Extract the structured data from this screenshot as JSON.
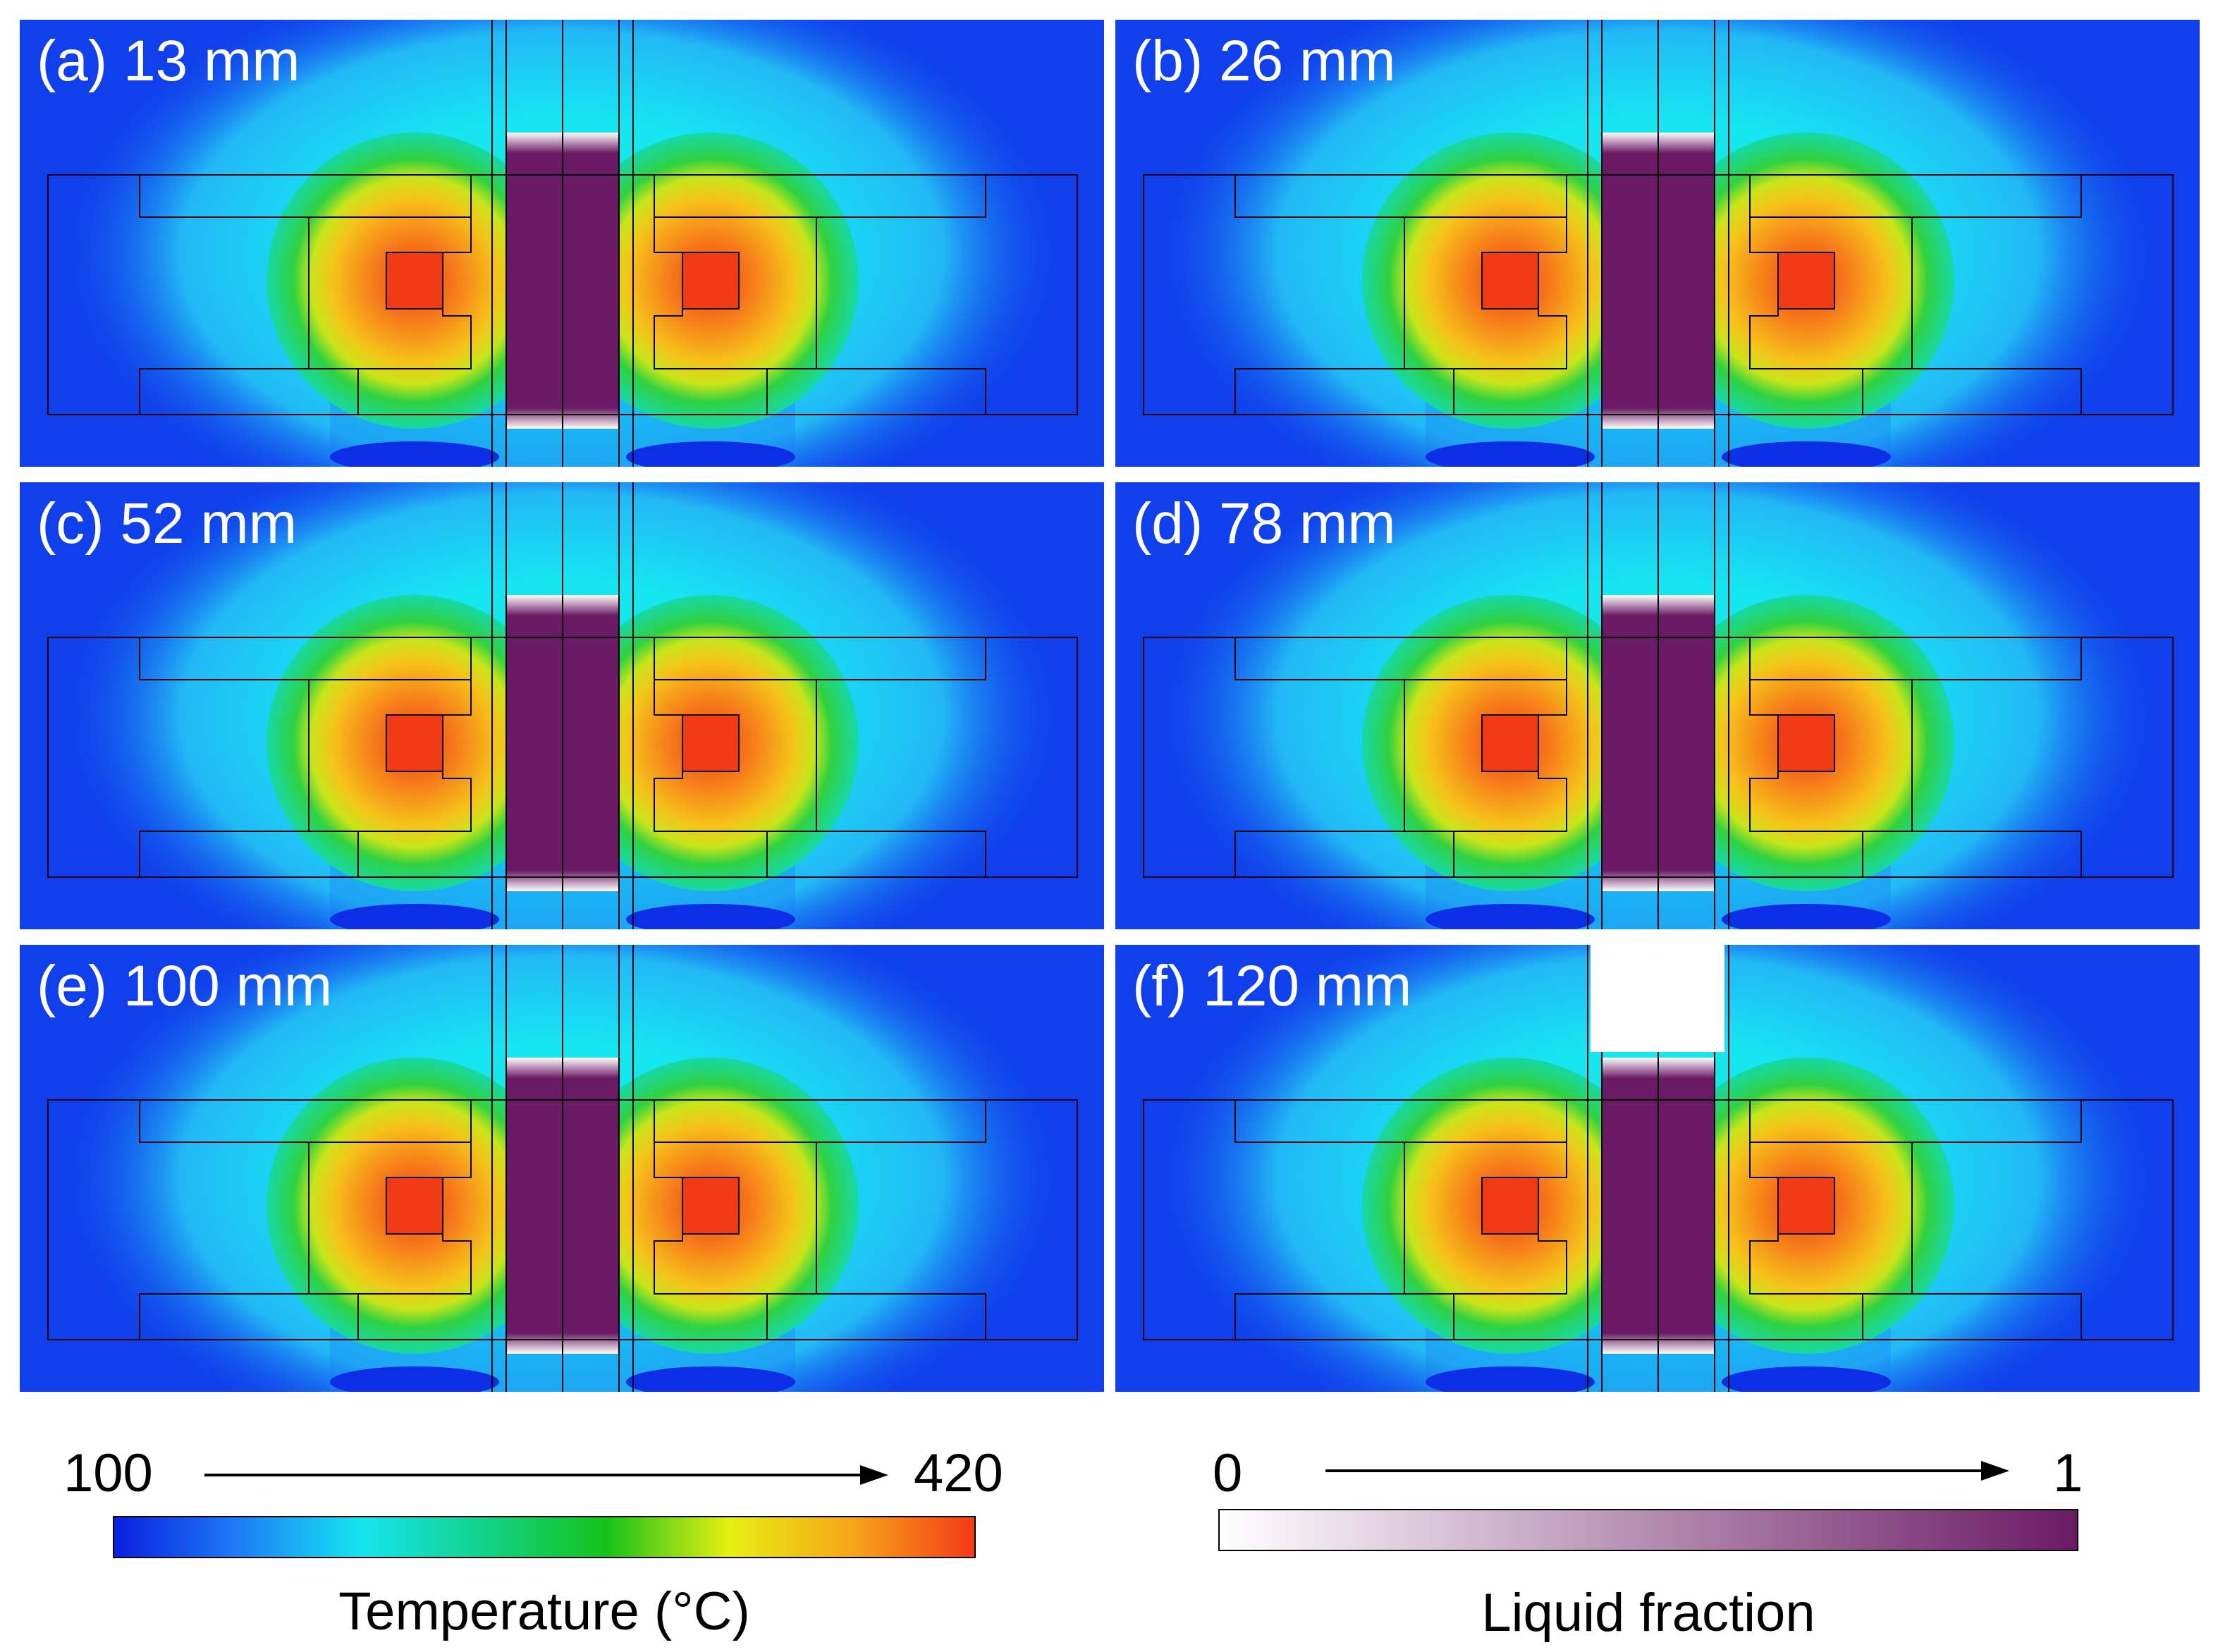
{
  "panels": [
    {
      "id": "a",
      "label": "(a) 13 mm"
    },
    {
      "id": "b",
      "label": "(b) 26 mm"
    },
    {
      "id": "c",
      "label": "(c) 52 mm"
    },
    {
      "id": "d",
      "label": "(d) 78 mm"
    },
    {
      "id": "e",
      "label": "(e) 100 mm"
    },
    {
      "id": "f",
      "label": "(f) 120 mm"
    }
  ],
  "temperature_scale": {
    "min": "100",
    "max": "420",
    "title": "Temperature (°C)",
    "colors": [
      "#0a1fe0",
      "#1e7cf5",
      "#16e4f2",
      "#12d28a",
      "#16c21a",
      "#e6ef12",
      "#f7a61a",
      "#f33a16"
    ]
  },
  "liquid_scale": {
    "min": "0",
    "max": "1",
    "title": "Liquid fraction",
    "colors": [
      "#ffffff",
      "#6a1a64"
    ]
  }
}
